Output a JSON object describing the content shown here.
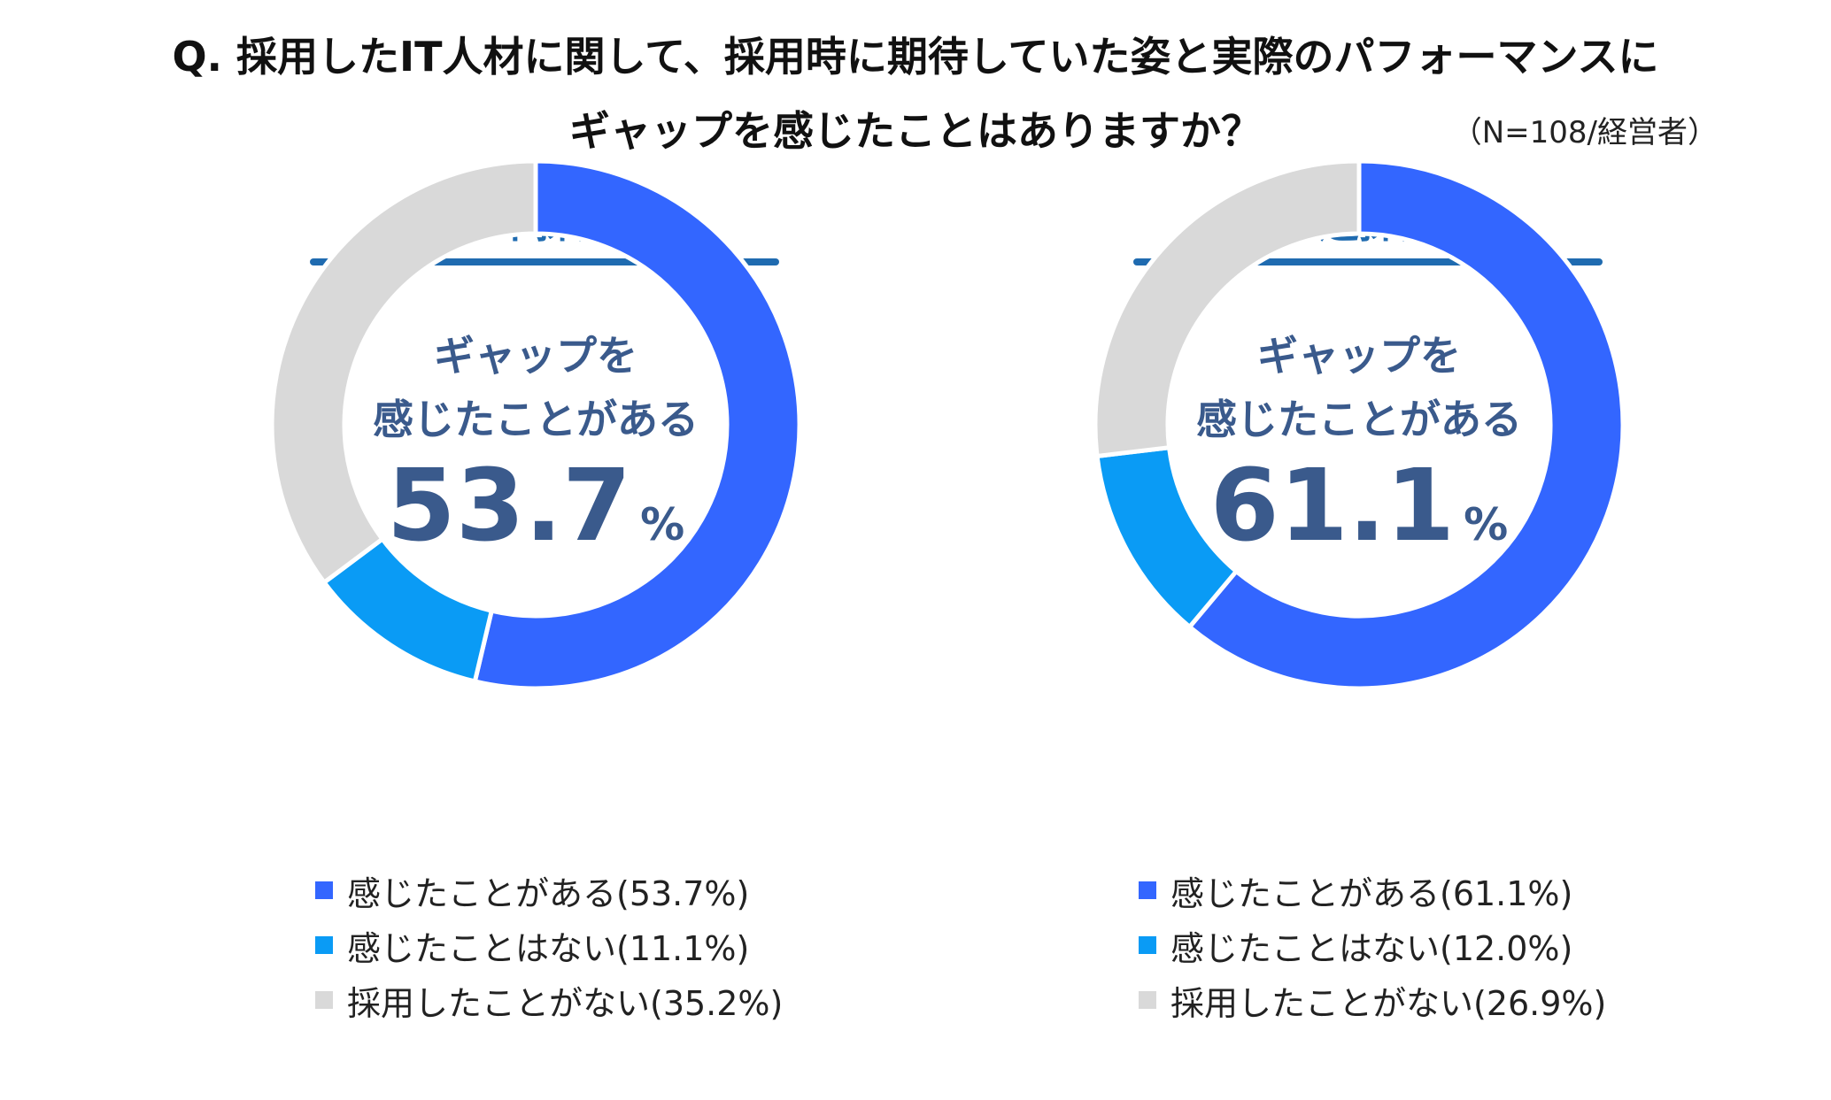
{
  "title": {
    "line1": "Q. 採用したIT人材に関して、採用時に期待していた姿と実際のパフォーマンスに",
    "line2": "ギャップを感じたことはありますか？",
    "note": "（N=108/経営者）"
  },
  "colors": {
    "accent": "#1f6bb0",
    "segments": [
      "#3366ff",
      "#0a9bf5",
      "#d9d9d9"
    ]
  },
  "chart_data": [
    {
      "type": "pie",
      "title": "新卒採用",
      "center_label_line1": "ギャップを",
      "center_label_line2": "感じたことがある",
      "center_value": "53.7",
      "center_unit": "%",
      "categories": [
        "感じたことがある",
        "感じたことはない",
        "採用したことがない"
      ],
      "values": [
        53.7,
        11.1,
        35.2
      ],
      "legend": [
        "感じたことがある(53.7%)",
        "感じたことはない(11.1%)",
        "採用したことがない(35.2%)"
      ]
    },
    {
      "type": "pie",
      "title": "中途採用",
      "center_label_line1": "ギャップを",
      "center_label_line2": "感じたことがある",
      "center_value": "61.1",
      "center_unit": "%",
      "categories": [
        "感じたことがある",
        "感じたことはない",
        "採用したことがない"
      ],
      "values": [
        61.1,
        12.0,
        26.9
      ],
      "legend": [
        "感じたことがある(61.1%)",
        "感じたことはない(12.0%)",
        "採用したことがない(26.9%)"
      ]
    }
  ]
}
